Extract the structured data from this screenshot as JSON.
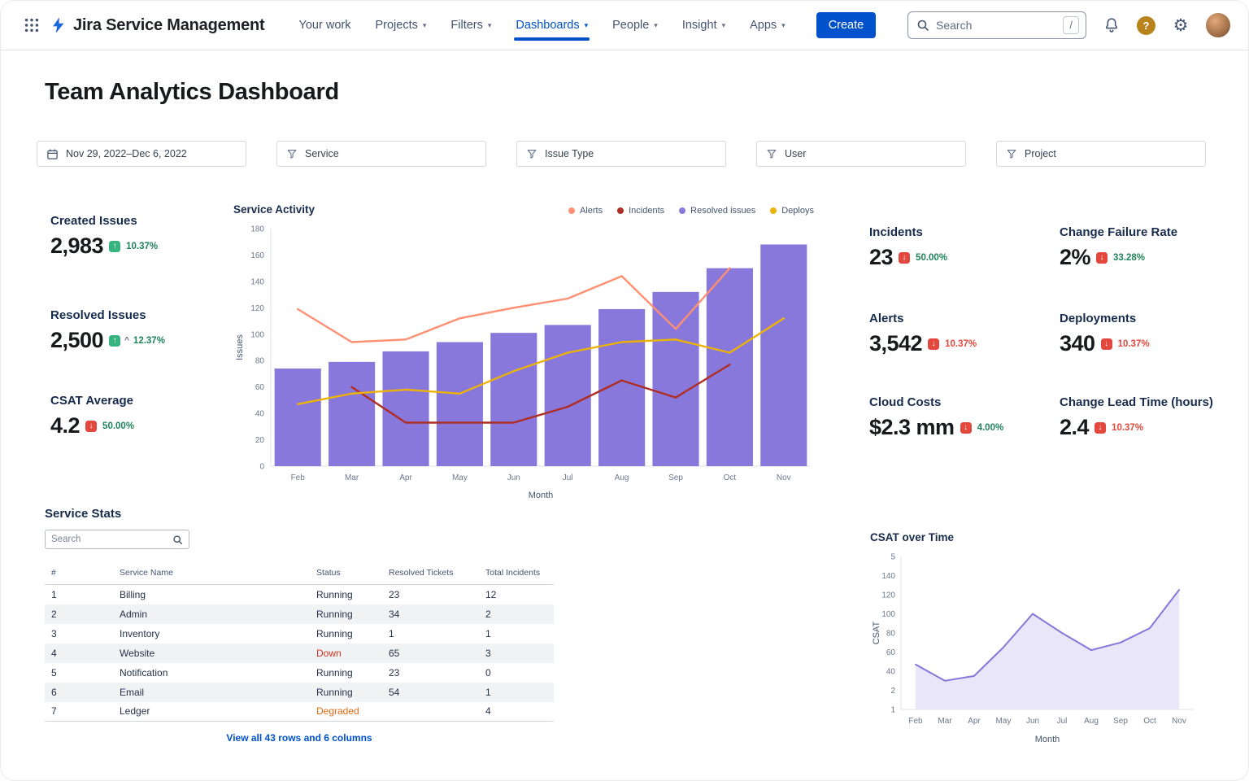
{
  "colors": {
    "salmon": "#FF8F73",
    "dark_red": "#AE2E24",
    "purple": "#8878DB",
    "yellow": "#ECB206",
    "csat_line": "#8777D9",
    "csat_fill": "#EAE6FA",
    "axis": "#DFE1E6"
  },
  "nav": {
    "brand": "Jira Service Management",
    "items": [
      {
        "label": "Your work"
      },
      {
        "label": "Projects"
      },
      {
        "label": "Filters"
      },
      {
        "label": "Dashboards"
      },
      {
        "label": "People"
      },
      {
        "label": "Insight"
      },
      {
        "label": "Apps"
      }
    ],
    "create_label": "Create",
    "search": {
      "placeholder": "Search",
      "shortcut": "/"
    }
  },
  "page_title": "Team Analytics Dashboard",
  "filters": [
    {
      "label": "Nov 29, 2022–Dec 6, 2022"
    },
    {
      "label": "Service"
    },
    {
      "label": "Issue Type"
    },
    {
      "label": "User"
    },
    {
      "label": "Project"
    }
  ],
  "kpis_left": [
    {
      "title": "Created Issues",
      "value": "2,983",
      "delta": "10.37%",
      "badge": "up",
      "tone": "green"
    },
    {
      "title": "Resolved Issues",
      "value": "2,500",
      "caret": "^",
      "delta": "12.37%",
      "badge": "up",
      "tone": "green"
    },
    {
      "title": "CSAT Average",
      "value": "4.2",
      "delta": "50.00%",
      "badge": "down",
      "tone": "green"
    }
  ],
  "kpis_right": [
    {
      "title": "Incidents",
      "value": "23",
      "delta": "50.00%",
      "badge": "down",
      "tone": "green"
    },
    {
      "title": "Change Failure Rate",
      "value": "2%",
      "delta": "33.28%",
      "badge": "down",
      "tone": "green"
    },
    {
      "title": "Alerts",
      "value": "3,542",
      "delta": "10.37%",
      "badge": "down",
      "tone": "red"
    },
    {
      "title": "Deployments",
      "value": "340",
      "delta": "10.37%",
      "badge": "down",
      "tone": "red"
    },
    {
      "title": "Cloud Costs",
      "value": "$2.3 mm",
      "delta": "4.00%",
      "badge": "down",
      "tone": "green"
    },
    {
      "title": "Change Lead Time (hours)",
      "value": "2.4",
      "delta": "10.37%",
      "badge": "down",
      "tone": "red"
    }
  ],
  "service_stats": {
    "title": "Service Stats",
    "search_placeholder": "Search",
    "columns": [
      "#",
      "Service Name",
      "Status",
      "Resolved Tickets",
      "Total Incidents"
    ],
    "rows": [
      {
        "num": 1,
        "name": "Billing",
        "status": "Running",
        "resolved": 23,
        "incidents": 12
      },
      {
        "num": 2,
        "name": "Admin",
        "status": "Running",
        "resolved": 34,
        "incidents": 2
      },
      {
        "num": 3,
        "name": "Inventory",
        "status": "Running",
        "resolved": 1,
        "incidents": 1
      },
      {
        "num": 4,
        "name": "Website",
        "status": "Down",
        "resolved": 65,
        "incidents": 3,
        "status_color": "#CA3521"
      },
      {
        "num": 5,
        "name": "Notification",
        "status": "Running",
        "resolved": 23,
        "incidents": 0
      },
      {
        "num": 6,
        "name": "Email",
        "status": "Running",
        "resolved": 54,
        "incidents": 1
      },
      {
        "num": 7,
        "name": "Ledger",
        "status": "Degraded",
        "resolved": "",
        "incidents": 4,
        "status_color": "#E56910"
      }
    ],
    "footer_link": "View all 43 rows and 6 columns"
  },
  "chart_data": [
    {
      "type": "bar+line combo",
      "title": "Service Activity",
      "categories": [
        "Feb",
        "Mar",
        "Apr",
        "May",
        "Jun",
        "Jul",
        "Aug",
        "Sep",
        "Oct",
        "Nov"
      ],
      "series": [
        {
          "name": "Alerts",
          "type": "line",
          "color_key": "salmon",
          "values": [
            119,
            94,
            96,
            112,
            120,
            127,
            144,
            104,
            150,
            null
          ]
        },
        {
          "name": "Incidents",
          "type": "line",
          "color_key": "dark_red",
          "values": [
            null,
            60,
            33,
            33,
            33,
            45,
            65,
            52,
            77,
            null
          ]
        },
        {
          "name": "Resolved issues",
          "type": "bar",
          "color_key": "purple",
          "values": [
            74,
            79,
            87,
            94,
            101,
            107,
            119,
            132,
            150,
            168
          ]
        },
        {
          "name": "Deploys",
          "type": "line",
          "color_key": "yellow",
          "values": [
            47,
            55,
            58,
            55,
            72,
            86,
            94,
            96,
            86,
            112
          ]
        }
      ],
      "xlabel": "Month",
      "ylabel": "Issues",
      "ylim": [
        0,
        180
      ],
      "ytick_step": 20,
      "grid": false,
      "legend_position": "top-right"
    },
    {
      "type": "area",
      "title": "CSAT over Time",
      "categories": [
        "Feb",
        "Mar",
        "Apr",
        "May",
        "Jun",
        "Jul",
        "Aug",
        "Sep",
        "Oct",
        "Nov"
      ],
      "values": [
        47,
        30,
        35,
        65,
        100,
        80,
        62,
        70,
        85,
        125
      ],
      "xlabel": "Month",
      "ylabel": "CSAT",
      "ytick_labels": [
        "5",
        "140",
        "120",
        "100",
        "80",
        "60",
        "40",
        "2",
        "1"
      ],
      "grid": false
    }
  ]
}
